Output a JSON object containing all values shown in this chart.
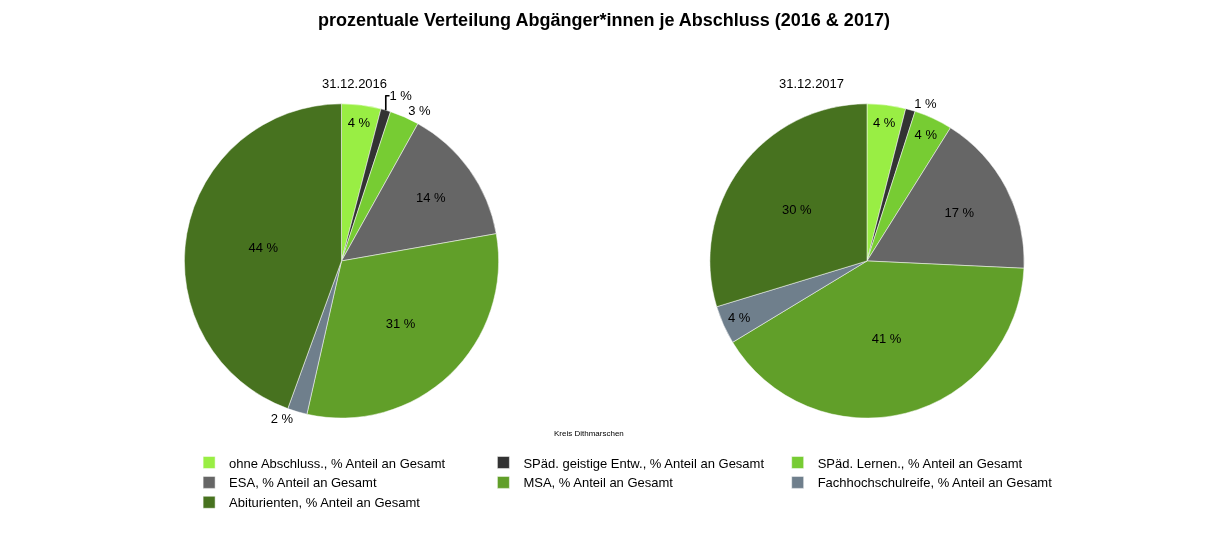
{
  "chart_data": {
    "type": "pie",
    "title": "prozentuale Verteilung Abgänger*innen je Abschluss (2016 & 2017)",
    "legend": "bottom",
    "annotations": [
      "Kreis Dithmarschen"
    ],
    "categories": [
      "ohne Abschluss., % Anteil an Gesamt",
      "SPäd. geistige Entw., % Anteil an Gesamt",
      "SPäd. Lernen., % Anteil an Gesamt",
      "ESA, % Anteil an Gesamt",
      "MSA, % Anteil an Gesamt",
      "Fachhochschulreife, % Anteil an Gesamt",
      "Abiturienten, % Anteil an Gesamt"
    ],
    "colors": [
      "#99ee44",
      "#333333",
      "#77cc33",
      "#666666",
      "#619f29",
      "#6f7f8c",
      "#47721f"
    ],
    "series": [
      {
        "name": "31.12.2016",
        "values": [
          4,
          1,
          3,
          14,
          31,
          2,
          44
        ],
        "value_labels": [
          "4 %",
          "1 %",
          "3 %",
          "14 %",
          "31 %",
          "2 %",
          "44 %"
        ]
      },
      {
        "name": "31.12.2017",
        "values": [
          4,
          1,
          4,
          17,
          41,
          4,
          30
        ],
        "value_labels": [
          "4 %",
          "1 %",
          "4 %",
          "17 %",
          "41 %",
          "4 %",
          "30 %"
        ]
      }
    ]
  }
}
